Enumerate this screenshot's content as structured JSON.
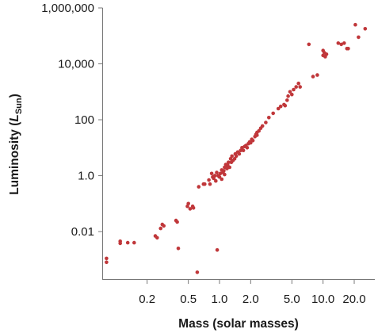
{
  "chart_data": {
    "type": "scatter",
    "xlabel": "Mass (solar masses)",
    "ylabel": {
      "main": "Luminosity (",
      "italic": "L",
      "subscript": "Sun",
      "close": ")"
    },
    "x_scale": "log",
    "y_scale": "log",
    "xlim": [
      0.075,
      30
    ],
    "ylim": [
      0.0002,
      1000000
    ],
    "x_ticks": [
      {
        "value": 0.2,
        "label": "0.2"
      },
      {
        "value": 0.5,
        "label": "0.5"
      },
      {
        "value": 1.0,
        "label": "1.0"
      },
      {
        "value": 2.0,
        "label": "2.0"
      },
      {
        "value": 5.0,
        "label": "5.0"
      },
      {
        "value": 10.0,
        "label": "10.0"
      },
      {
        "value": 20.0,
        "label": "20.0"
      }
    ],
    "y_ticks": [
      {
        "value": 0.01,
        "label": "0.01"
      },
      {
        "value": 1.0,
        "label": "1.0"
      },
      {
        "value": 100,
        "label": "100"
      },
      {
        "value": 10000,
        "label": "10,000"
      },
      {
        "value": 1000000,
        "label": "1,000,000"
      }
    ],
    "grid": false,
    "point_color": "#c0373a",
    "points": [
      [
        0.081,
        0.0011
      ],
      [
        0.081,
        0.0008
      ],
      [
        0.11,
        0.0045
      ],
      [
        0.11,
        0.0038
      ],
      [
        0.13,
        0.004
      ],
      [
        0.15,
        0.004
      ],
      [
        0.24,
        0.007
      ],
      [
        0.25,
        0.006
      ],
      [
        0.27,
        0.013
      ],
      [
        0.28,
        0.018
      ],
      [
        0.29,
        0.016
      ],
      [
        0.38,
        0.025
      ],
      [
        0.39,
        0.022
      ],
      [
        0.4,
        0.0025
      ],
      [
        0.49,
        0.08
      ],
      [
        0.5,
        0.1
      ],
      [
        0.52,
        0.065
      ],
      [
        0.55,
        0.08
      ],
      [
        0.56,
        0.07
      ],
      [
        0.61,
        0.00035
      ],
      [
        0.63,
        0.4
      ],
      [
        0.7,
        0.5
      ],
      [
        0.72,
        0.5
      ],
      [
        0.79,
        0.7
      ],
      [
        0.81,
        0.5
      ],
      [
        0.84,
        1.2
      ],
      [
        0.86,
        0.9
      ],
      [
        0.88,
        0.8
      ],
      [
        0.9,
        1.0
      ],
      [
        0.92,
        0.65
      ],
      [
        0.94,
        1.3
      ],
      [
        0.95,
        0.0022
      ],
      [
        0.97,
        1.0
      ],
      [
        1.0,
        0.9
      ],
      [
        1.02,
        1.2
      ],
      [
        1.05,
        1.6
      ],
      [
        1.05,
        0.75
      ],
      [
        1.08,
        1.3
      ],
      [
        1.1,
        1.5
      ],
      [
        1.12,
        2.0
      ],
      [
        1.12,
        1.1
      ],
      [
        1.15,
        2.0
      ],
      [
        1.15,
        2.5
      ],
      [
        1.18,
        1.8
      ],
      [
        1.2,
        2.4
      ],
      [
        1.22,
        3.0
      ],
      [
        1.25,
        2.0
      ],
      [
        1.28,
        4.0
      ],
      [
        1.3,
        3.0
      ],
      [
        1.32,
        5.0
      ],
      [
        1.35,
        3.5
      ],
      [
        1.4,
        4.0
      ],
      [
        1.42,
        6.0
      ],
      [
        1.45,
        5.0
      ],
      [
        1.5,
        7.0
      ],
      [
        1.55,
        6.0
      ],
      [
        1.6,
        8.0
      ],
      [
        1.65,
        10
      ],
      [
        1.7,
        8.0
      ],
      [
        1.75,
        11
      ],
      [
        1.8,
        12
      ],
      [
        1.85,
        10
      ],
      [
        1.9,
        14
      ],
      [
        1.95,
        16
      ],
      [
        2.0,
        15
      ],
      [
        2.05,
        20
      ],
      [
        2.1,
        18
      ],
      [
        2.2,
        25
      ],
      [
        2.25,
        30
      ],
      [
        2.3,
        35
      ],
      [
        2.4,
        40
      ],
      [
        2.5,
        50
      ],
      [
        2.3,
        28
      ],
      [
        2.6,
        60
      ],
      [
        2.8,
        80
      ],
      [
        3.0,
        120
      ],
      [
        3.3,
        170
      ],
      [
        3.7,
        250
      ],
      [
        3.9,
        300
      ],
      [
        4.2,
        350
      ],
      [
        4.3,
        320
      ],
      [
        4.5,
        500
      ],
      [
        4.6,
        700
      ],
      [
        4.8,
        1000
      ],
      [
        5.0,
        800
      ],
      [
        5.2,
        1200
      ],
      [
        5.5,
        1500
      ],
      [
        5.8,
        2000
      ],
      [
        6.0,
        1500
      ],
      [
        7.3,
        50000
      ],
      [
        8.0,
        3500
      ],
      [
        8.8,
        4000
      ],
      [
        10.0,
        30000
      ],
      [
        10.0,
        20000
      ],
      [
        10.3,
        25000
      ],
      [
        10.5,
        18000
      ],
      [
        10.8,
        22000
      ],
      [
        14.0,
        55000
      ],
      [
        15.0,
        50000
      ],
      [
        16.0,
        55000
      ],
      [
        17.0,
        35000
      ],
      [
        17.5,
        35000
      ],
      [
        20.5,
        250000
      ],
      [
        22.0,
        90000
      ],
      [
        25.5,
        180000
      ]
    ]
  }
}
